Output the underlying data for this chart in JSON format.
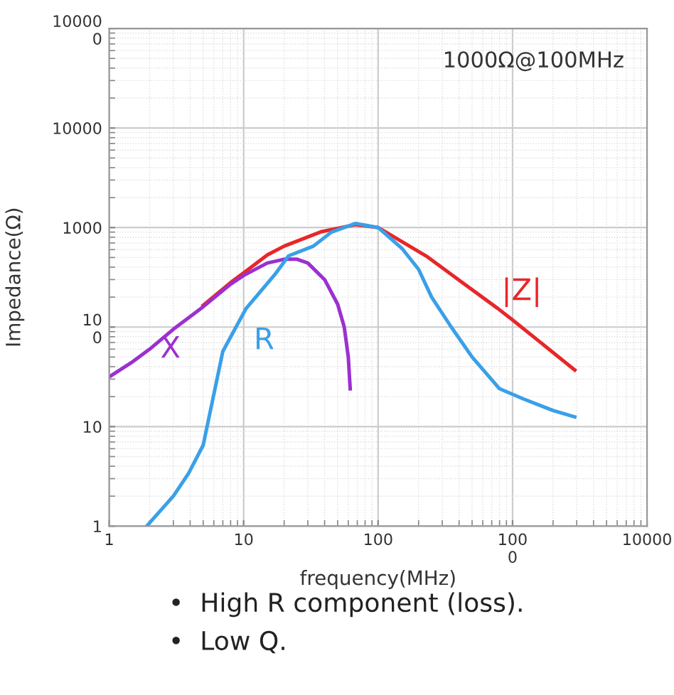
{
  "chart_data": {
    "type": "line",
    "xlabel": "frequency(MHz)",
    "ylabel": "Impedance(Ω)",
    "log": "xy",
    "xlim": [
      1,
      10000
    ],
    "ylim": [
      1,
      100000
    ],
    "xticks": [
      {
        "value": 1,
        "label": "1"
      },
      {
        "value": 10,
        "label": "10"
      },
      {
        "value": 100,
        "label": "100"
      },
      {
        "value": 1000,
        "label": "100\n0"
      },
      {
        "value": 10000,
        "label": "10000"
      }
    ],
    "yticks": [
      {
        "value": 1,
        "label": "1"
      },
      {
        "value": 10,
        "label": "10"
      },
      {
        "value": 100,
        "label": "10\n0"
      },
      {
        "value": 1000,
        "label": "1000"
      },
      {
        "value": 10000,
        "label": "10000"
      },
      {
        "value": 100000,
        "label": "10000\n0"
      }
    ],
    "grid": true,
    "marker": "none",
    "line_style": "solid",
    "series": [
      {
        "name": "|Z|",
        "color": "#e8262a",
        "x": [
          5,
          8,
          10,
          15,
          20,
          38,
          68,
          100,
          228,
          442,
          780,
          1000,
          2900
        ],
        "values": [
          165,
          280,
          350,
          530,
          650,
          910,
          1070,
          1000,
          517,
          268,
          153,
          118,
          37
        ]
      },
      {
        "name": "X",
        "color": "#9b30d0",
        "x": [
          1,
          1.5,
          2,
          3,
          5,
          8,
          10,
          15,
          20,
          25,
          30,
          40,
          50,
          56,
          60,
          62
        ],
        "values": [
          31.6,
          45,
          60,
          95,
          160,
          270,
          330,
          440,
          480,
          480,
          440,
          300,
          170,
          100,
          50,
          24
        ]
      },
      {
        "name": "R",
        "color": "#3aa0e8",
        "x": [
          1.9,
          3,
          3.9,
          5,
          7,
          10.4,
          17,
          21.6,
          33,
          45,
          68,
          100,
          150,
          200,
          250,
          350,
          500,
          800,
          1200,
          2000,
          2900
        ],
        "values": [
          1,
          2,
          3.4,
          6.5,
          57,
          153,
          335,
          520,
          650,
          900,
          1100,
          1000,
          620,
          380,
          200,
          100,
          50,
          24,
          19,
          14.5,
          12.5
        ]
      }
    ],
    "annotations": [
      "1000Ω@100MHz",
      "•  High R component (loss).",
      "•  Low Q."
    ]
  }
}
